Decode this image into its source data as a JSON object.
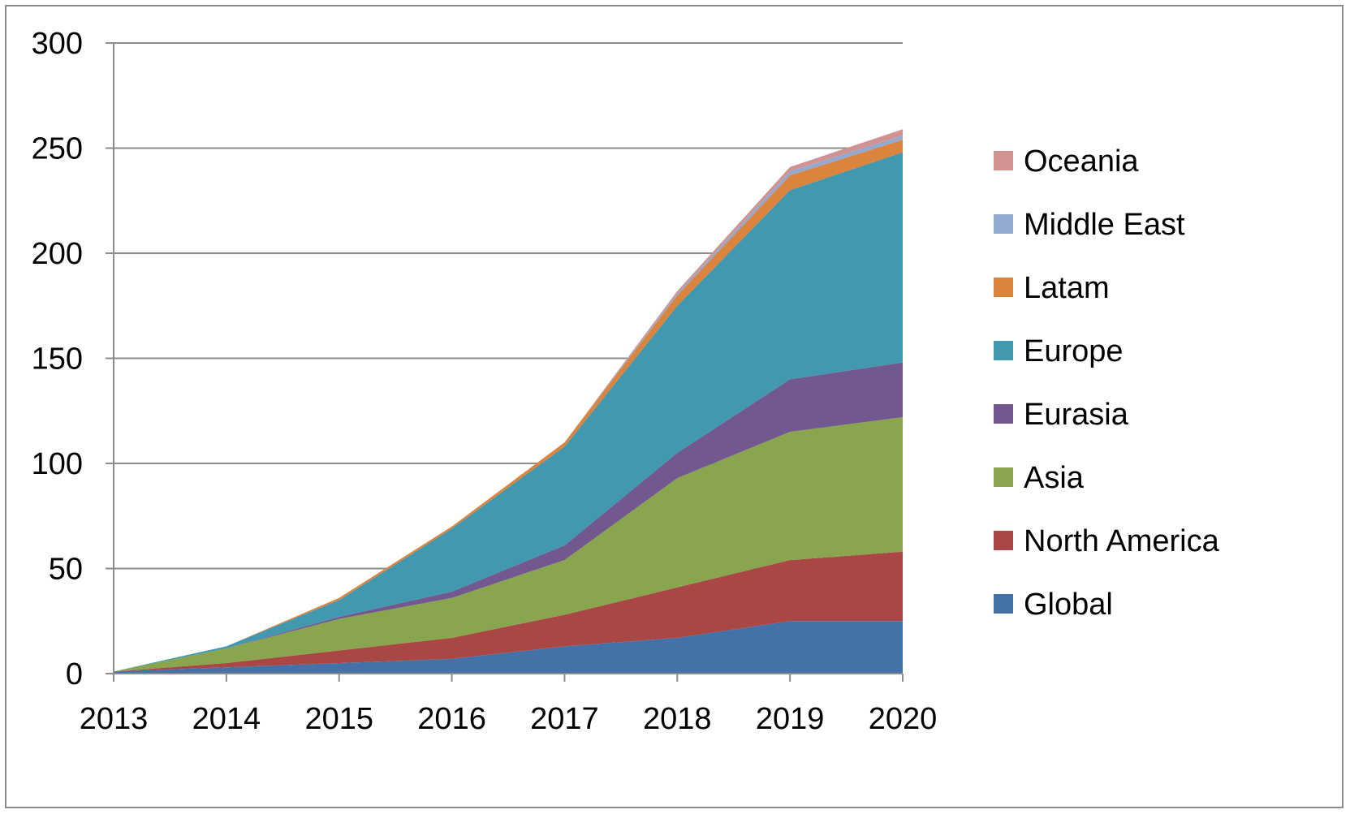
{
  "chart_data": {
    "type": "area",
    "stacked": true,
    "title": "",
    "xlabel": "",
    "ylabel": "",
    "x": [
      2013,
      2014,
      2015,
      2016,
      2017,
      2018,
      2019,
      2020
    ],
    "ylim": [
      0,
      300
    ],
    "yticks": [
      0,
      50,
      100,
      150,
      200,
      250,
      300
    ],
    "grid": "horizontal",
    "legend_position": "right",
    "series": [
      {
        "name": "Global",
        "color": "#4472a8",
        "values": [
          1,
          3,
          5,
          7,
          13,
          17,
          25,
          25
        ]
      },
      {
        "name": "North America",
        "color": "#a94744",
        "values": [
          0,
          2,
          6,
          10,
          15,
          24,
          29,
          33
        ]
      },
      {
        "name": "Asia",
        "color": "#89a54e",
        "values": [
          0,
          7,
          15,
          19,
          26,
          52,
          61,
          64
        ]
      },
      {
        "name": "Eurasia",
        "color": "#71588f",
        "values": [
          0,
          0,
          1,
          3,
          7,
          12,
          25,
          26
        ]
      },
      {
        "name": "Europe",
        "color": "#4298af",
        "values": [
          0,
          1,
          8,
          30,
          47,
          70,
          90,
          100
        ]
      },
      {
        "name": "Latam",
        "color": "#db843d",
        "values": [
          0,
          0,
          1,
          1,
          2,
          5,
          7,
          6
        ]
      },
      {
        "name": "Middle East",
        "color": "#93a9cf",
        "values": [
          0,
          0,
          0,
          0,
          0,
          1,
          2,
          2
        ]
      },
      {
        "name": "Oceania",
        "color": "#d19392",
        "values": [
          0,
          0,
          0,
          0,
          0,
          1,
          2,
          3
        ]
      }
    ]
  }
}
